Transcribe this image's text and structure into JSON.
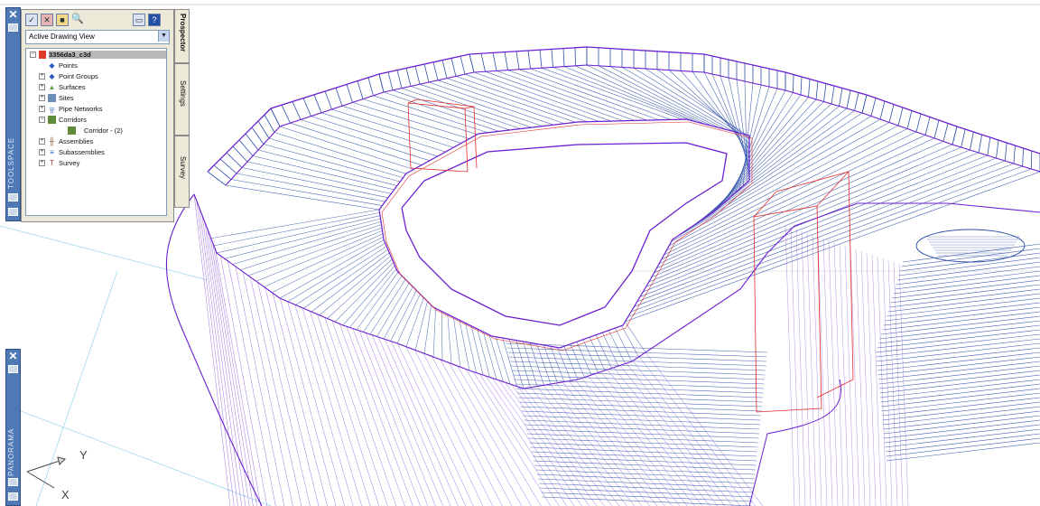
{
  "toolspace": {
    "title": "TOOLSPACE",
    "view_select": "Active Drawing View",
    "tree": {
      "root": "3356da3_c3d",
      "items": [
        "Points",
        "Point Groups",
        "Surfaces",
        "Sites",
        "Pipe Networks",
        "Corridors"
      ],
      "corridor_child": "Corridor - (2)",
      "items_after": [
        "Assemblies",
        "Subassemblies",
        "Survey"
      ]
    },
    "tabs": [
      "Prospector",
      "Settings",
      "Survey"
    ],
    "toolbar_icons": [
      "prospector-icon",
      "settings-icon",
      "survey-icon",
      "search-icon",
      "panel-icon",
      "help-icon"
    ]
  },
  "panorama": {
    "title": "PANORAMA"
  },
  "ucs": {
    "x_label": "X",
    "y_label": "Y"
  },
  "colors": {
    "outline": "#6a1fd1",
    "lines": "#2e4fa8",
    "red": "#e02a2a",
    "strip": "#4f79b5"
  }
}
